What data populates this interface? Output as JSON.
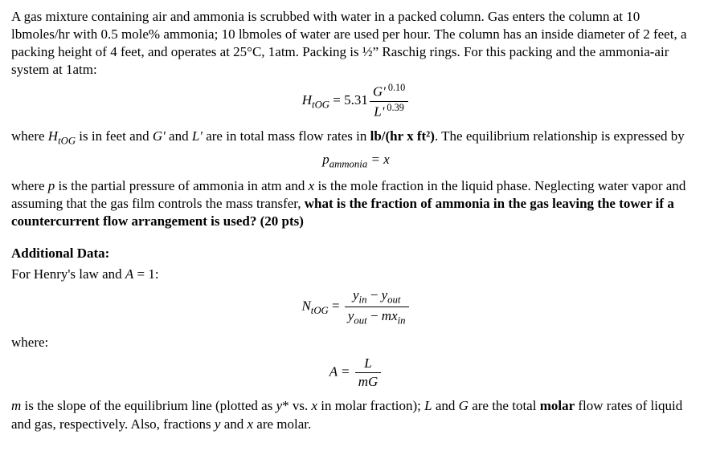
{
  "p1": "A gas mixture containing air and ammonia is scrubbed with water in a packed column. Gas enters the column at 10 lbmoles/hr with 0.5 mole% ammonia; 10 lbmoles of water are used per hour. The column has an inside diameter of 2 feet, a packing height of 4 feet, and operates at 25°C, 1atm. Packing is ½” Raschig rings. For this packing and the ammonia-air system at 1atm:",
  "eq1": {
    "lhs_base": "H",
    "lhs_sub": "tOG",
    "eq": " = 5.31",
    "num_base": "G'",
    "num_sup": " 0.10",
    "den_base": "L'",
    "den_sup": " 0.39"
  },
  "p2a": "where ",
  "p2b": "H",
  "p2b_sub": "tOG",
  "p2c": " is in feet and ",
  "p2d": "G'",
  "p2e": " and ",
  "p2f": "L'",
  "p2g": " are in total mass flow rates in ",
  "p2h": "lb/(hr x ft²)",
  "p2i": ". The equilibrium relationship is expressed by",
  "eq2": {
    "lhs_base": "p",
    "lhs_sub": "ammonia",
    "rhs": " = x"
  },
  "p3a": "where ",
  "p3b": "p",
  "p3c": " is the partial pressure of ammonia in atm and ",
  "p3d": "x",
  "p3e": " is the mole fraction in the liquid phase. Neglecting water vapor and assuming that the gas film controls the mass transfer, ",
  "p3f": "what is the fraction of ammonia in the gas leaving the tower if a countercurrent flow arrangement is used? (20 pts)",
  "addl_title": "Additional Data:",
  "p4a": "For Henry's law and ",
  "p4b": "A",
  "p4c": " = 1:",
  "eq3": {
    "lhs_base": "N",
    "lhs_sub": "tOG",
    "eq": " = ",
    "num_y": "y",
    "num_in": "in",
    "minus": " − ",
    "num_out": "out",
    "den_m": "mx"
  },
  "where_label": "where:",
  "eq4": {
    "lhs": "A = ",
    "num": "L",
    "den": "mG"
  },
  "p5a": "m",
  "p5b": " is the slope of the equilibrium line (plotted as ",
  "p5c": "y",
  "p5d": "* vs. ",
  "p5e": "x",
  "p5f": " in molar fraction); ",
  "p5g": "L",
  "p5h": " and ",
  "p5i": "G",
  "p5j": " are the total ",
  "p5k": "molar",
  "p5l": " flow rates of liquid and gas, respectively. Also, fractions ",
  "p5m": "y",
  "p5n": " and ",
  "p5o": "x",
  "p5p": " are molar."
}
